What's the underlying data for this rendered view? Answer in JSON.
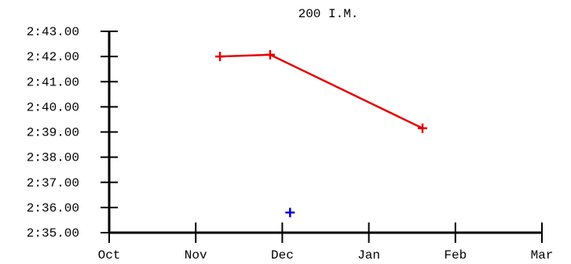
{
  "chart_data": {
    "type": "scatter",
    "title": "200 I.M.",
    "xlabel": "",
    "ylabel": "",
    "x_ticks": [
      "Oct",
      "Nov",
      "Dec",
      "Jan",
      "Feb",
      "Mar"
    ],
    "y_ticks": [
      "2:35.00",
      "2:36.00",
      "2:37.00",
      "2:38.00",
      "2:39.00",
      "2:40.00",
      "2:41.00",
      "2:42.00",
      "2:43.00"
    ],
    "ylim": [
      155,
      163
    ],
    "grid": false,
    "legend": "none",
    "series": [
      {
        "color": "#e60000",
        "connected": true,
        "marker": "plus",
        "points": [
          {
            "month": 1.28,
            "seconds": 162.0
          },
          {
            "month": 1.86,
            "seconds": 162.07
          },
          {
            "month": 3.62,
            "seconds": 159.15
          }
        ]
      },
      {
        "color": "#0000cc",
        "connected": false,
        "marker": "plus",
        "points": [
          {
            "month": 2.09,
            "seconds": 155.8
          }
        ]
      }
    ]
  }
}
